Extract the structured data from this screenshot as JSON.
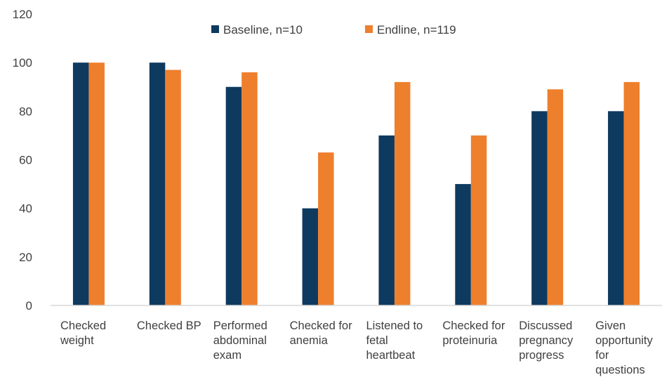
{
  "chart_data": {
    "type": "bar",
    "title": "",
    "xlabel": "",
    "ylabel": "",
    "ylim": [
      0,
      120
    ],
    "yticks": [
      "0",
      "20",
      "40",
      "60",
      "80",
      "100",
      "120"
    ],
    "grid": false,
    "legend_position": "top",
    "categories": [
      [
        "Checked",
        "weight"
      ],
      [
        "Checked BP"
      ],
      [
        "Performed",
        "abdominal",
        "exam"
      ],
      [
        "Checked  for",
        "anemia"
      ],
      [
        "Listened to",
        "fetal",
        "heartbeat"
      ],
      [
        "Checked for",
        "proteinuria"
      ],
      [
        "Discussed",
        "pregnancy",
        "progress"
      ],
      [
        "Given",
        "opportunity",
        "for",
        "questions"
      ]
    ],
    "series": [
      {
        "name": "Baseline, n=10",
        "color": "#0e3a5f",
        "values": [
          100,
          100,
          90,
          40,
          70,
          50,
          80,
          80
        ]
      },
      {
        "name": "Endline, n=119",
        "color": "#ee7f2d",
        "values": [
          100,
          97,
          96,
          63,
          92,
          70,
          89,
          92
        ]
      }
    ]
  }
}
